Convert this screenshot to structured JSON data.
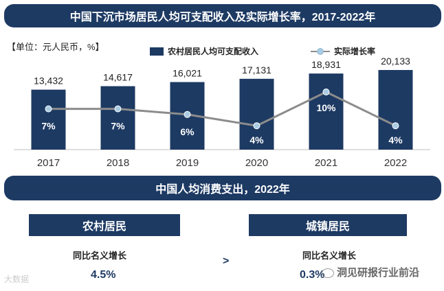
{
  "title": "中国下沉市场居民人均可支配收入及实际增长率，2017-2022年",
  "unit_label": "【单位：元人民币，%】",
  "legend": {
    "bar": "农村居民人均可支配收入",
    "line": "实际增长率"
  },
  "colors": {
    "primary": "#1d3a63",
    "line": "#8c8c8c",
    "marker": "#a9cce3"
  },
  "chart_data": {
    "type": "bar",
    "categories": [
      "2017",
      "2018",
      "2019",
      "2020",
      "2021",
      "2022"
    ],
    "series": [
      {
        "name": "农村居民人均可支配收入",
        "type": "bar",
        "values": [
          13432,
          14617,
          16021,
          17131,
          18931,
          20133
        ],
        "labels": [
          "13,432",
          "14,617",
          "16,021",
          "17,131",
          "18,931",
          "20,133"
        ]
      },
      {
        "name": "实际增长率",
        "type": "line",
        "values": [
          7,
          7,
          6,
          4,
          10,
          4
        ],
        "labels": [
          "7%",
          "7%",
          "6%",
          "4%",
          "10%",
          "4%"
        ]
      }
    ],
    "xlabel": "",
    "ylabel": ""
  },
  "section2": {
    "title": "中国人均消费支出，2022年",
    "rural": {
      "title": "农村居民",
      "subtitle": "同比名义增长",
      "value": "4.5%"
    },
    "comparison": ">",
    "urban": {
      "title": "城镇居民",
      "subtitle": "同比名义增长",
      "value": "0.3%"
    }
  },
  "watermarks": {
    "left": "大数据",
    "right": "洞见研报行业前沿"
  }
}
